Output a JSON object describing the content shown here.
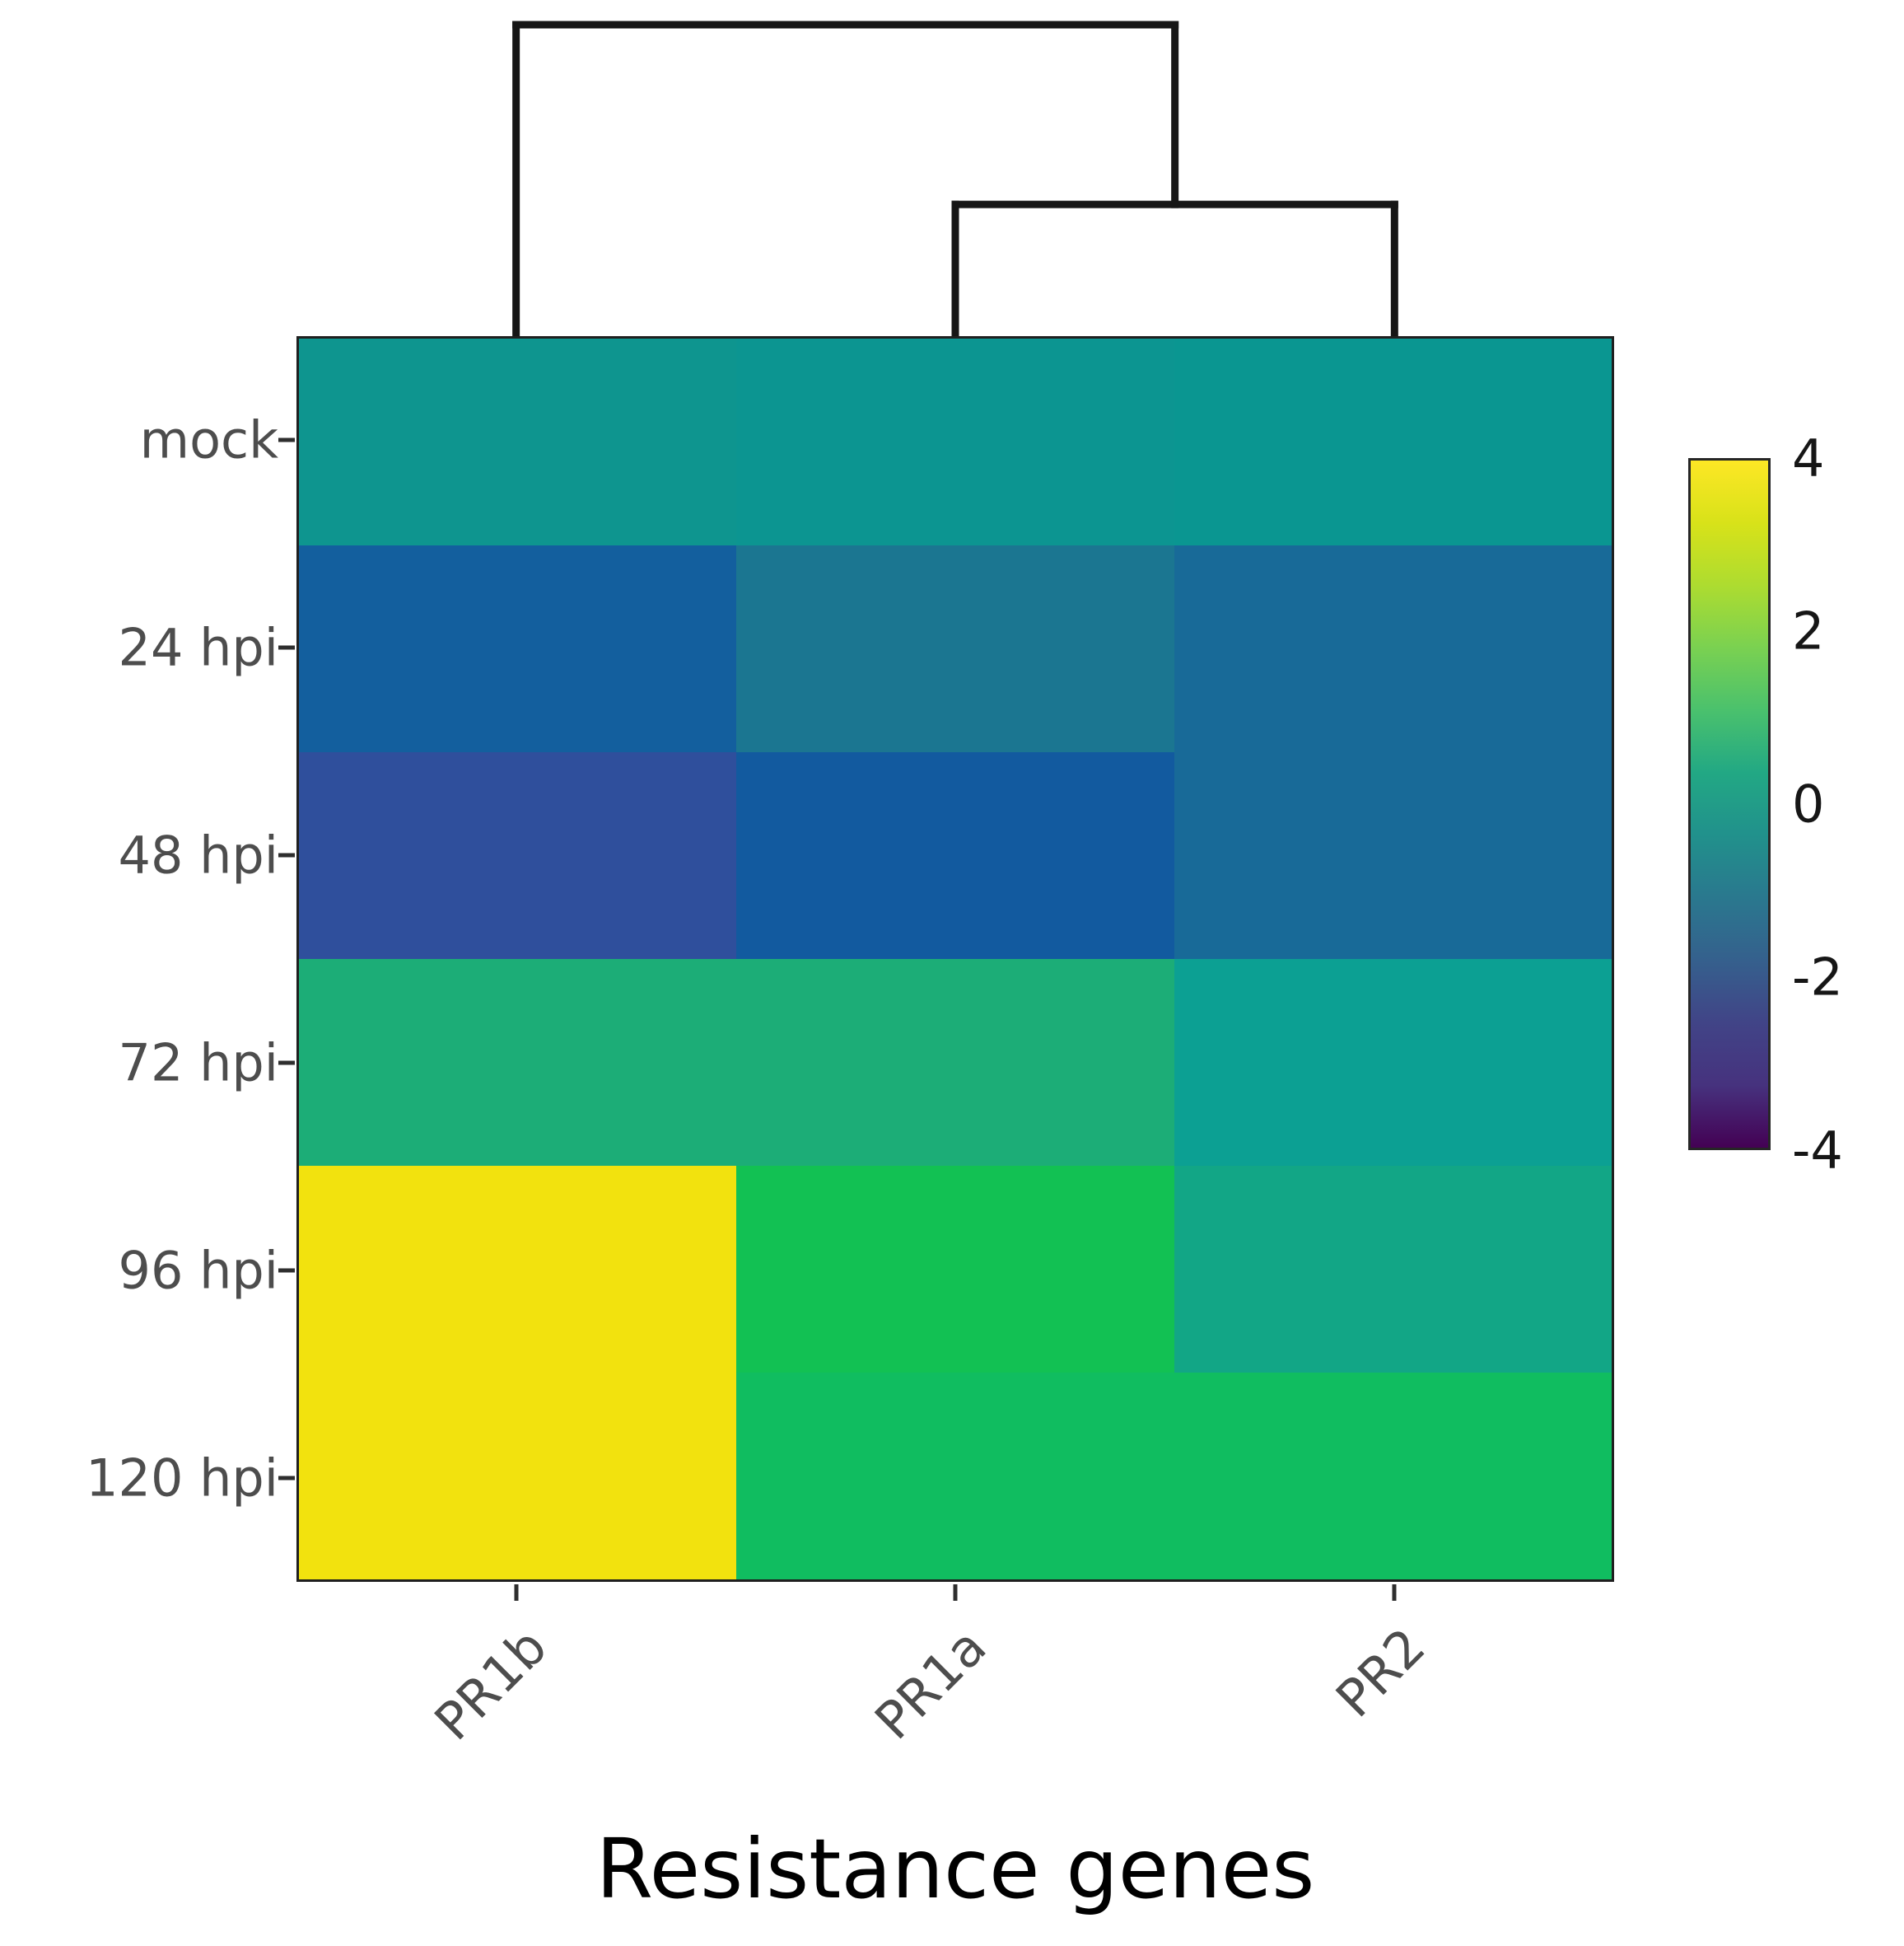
{
  "figure": {
    "background": "#ffffff"
  },
  "chart_data": {
    "type": "heatmap",
    "title": "",
    "xlabel": "Resistance genes",
    "ylabel": "",
    "columns": [
      "PR1b",
      "PR1a",
      "PR2"
    ],
    "rows": [
      "mock",
      "24 hpi",
      "48 hpi",
      "72 hpi",
      "96 hpi",
      "120 hpi"
    ],
    "values": [
      [
        0.1,
        0.0,
        0.0
      ],
      [
        -1.5,
        -0.7,
        -1.1
      ],
      [
        -2.1,
        -1.5,
        -1.1
      ],
      [
        1.3,
        1.3,
        0.3
      ],
      [
        4.0,
        2.3,
        0.7
      ],
      [
        4.0,
        2.0,
        2.0
      ]
    ],
    "cell_colors": [
      [
        "#0e958f",
        "#0c9591",
        "#0a9691"
      ],
      [
        "#135f9e",
        "#1b7691",
        "#186a98"
      ],
      [
        "#2f4f9c",
        "#125a9f",
        "#186a98"
      ],
      [
        "#1cad77",
        "#1cad77",
        "#0ca093"
      ],
      [
        "#f2e20e",
        "#12c153",
        "#12a686"
      ],
      [
        "#f2e20e",
        "#10bd60",
        "#10bd60"
      ]
    ],
    "colorbar": {
      "min": -4,
      "max": 4,
      "tick_labels": [
        "4",
        "2",
        "0",
        "-2",
        "-4"
      ],
      "gradient_top_to_bottom": [
        "#fde725",
        "#d8e219",
        "#addc30",
        "#7ad151",
        "#4ac16d",
        "#22a884",
        "#21918c",
        "#2a788e",
        "#35608d",
        "#414487",
        "#46327e",
        "#440154"
      ]
    },
    "dendrogram": {
      "axis": "columns",
      "order": [
        "PR1b",
        "PR1a",
        "PR2"
      ],
      "links": [
        {
          "id": "link0",
          "left": "PR1a",
          "right": "PR2",
          "level": 0.423
        },
        {
          "id": "root",
          "left": "PR1b",
          "right": "link0",
          "level": 1.0
        }
      ]
    },
    "legend_position": "right",
    "grid": false
  }
}
